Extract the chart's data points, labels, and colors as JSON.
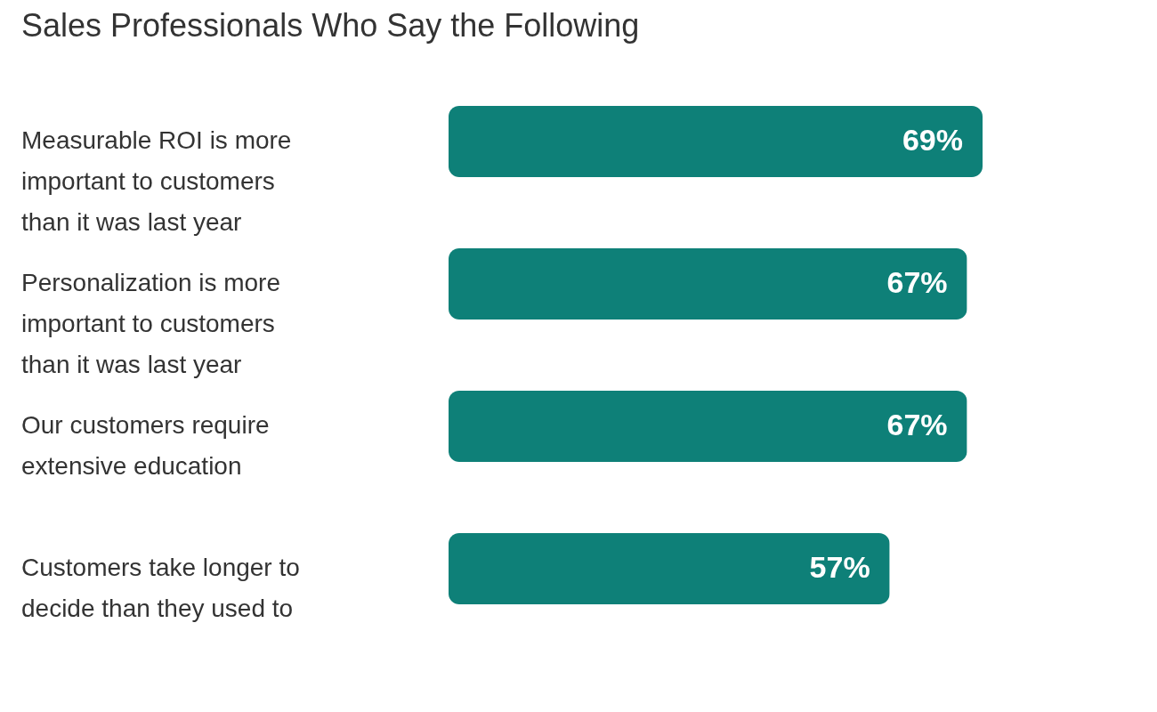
{
  "chart_data": {
    "type": "bar",
    "orientation": "horizontal",
    "title": "Sales Professionals Who Say the Following",
    "categories": [
      "Measurable ROI is more important to customers than it was last year",
      "Personalization is more important to customers than it was last year",
      "Our customers require extensive education",
      "Customers take longer to decide than they used to"
    ],
    "values": [
      69,
      67,
      67,
      57
    ],
    "value_labels": [
      "69%",
      "67%",
      "67%",
      "57%"
    ],
    "color": "#0e8078"
  }
}
